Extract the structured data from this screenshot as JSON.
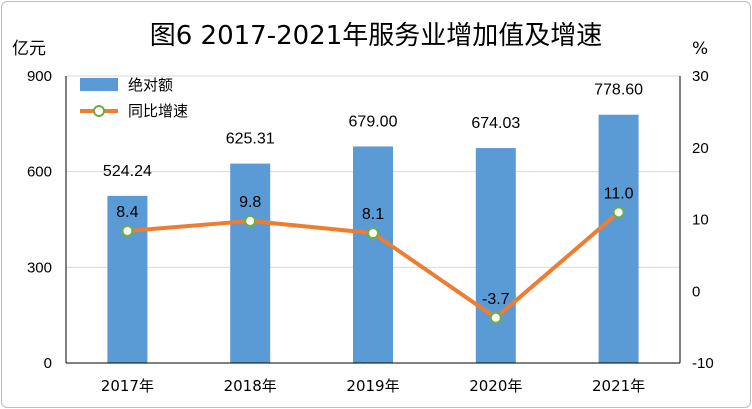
{
  "chart_data": {
    "type": "bar",
    "title": "图6 2017-2021年服务业增加值及增速",
    "y_left_unit": "亿元",
    "y_right_unit": "%",
    "categories": [
      "2017年",
      "2018年",
      "2019年",
      "2020年",
      "2021年"
    ],
    "y_left_ticks": [
      "0",
      "300",
      "600",
      "900"
    ],
    "y_right_ticks": [
      "-10",
      "0",
      "10",
      "20",
      "30"
    ],
    "y_left_lim": [
      0,
      900
    ],
    "y_right_lim": [
      -10,
      30
    ],
    "grid": true,
    "legend_position": "top-left",
    "series": [
      {
        "name": "绝对额",
        "type": "bar",
        "axis": "left",
        "color": "#5b9bd5",
        "values": [
          524.24,
          625.31,
          679.0,
          674.03,
          778.6
        ],
        "labels": [
          "524.24",
          "625.31",
          "679.00",
          "674.03",
          "778.60"
        ]
      },
      {
        "name": "同比增速",
        "type": "line",
        "axis": "right",
        "color": "#ed7d31",
        "marker_color": "#70ad47",
        "values": [
          8.4,
          9.8,
          8.1,
          -3.7,
          11.0
        ],
        "labels": [
          "8.4",
          "9.8",
          "8.1",
          "-3.7",
          "11.0"
        ]
      }
    ]
  }
}
